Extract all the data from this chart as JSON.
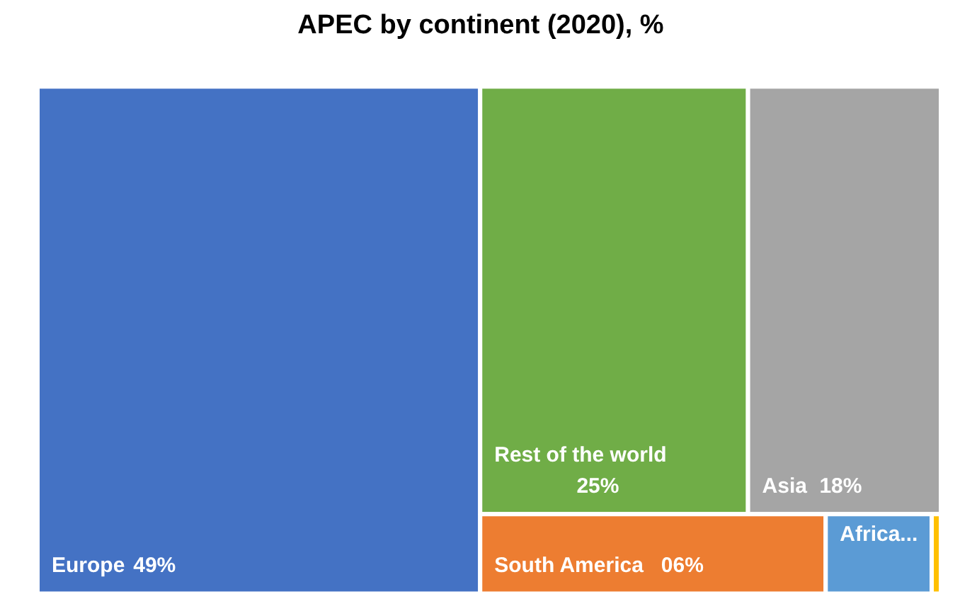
{
  "chart_data": {
    "type": "other",
    "title": "APEC by continent (2020), %",
    "categories": [
      "Europe",
      "Rest of the world",
      "Asia",
      "South America",
      "Africa...",
      null
    ],
    "values": [
      49,
      25,
      18,
      6,
      null,
      null
    ],
    "value_labels": [
      "49%",
      "25%",
      "18%",
      "06%",
      null,
      null
    ],
    "colors": [
      "#4472c4",
      "#70ad47",
      "#a5a5a5",
      "#ed7d31",
      "#5b9bd5",
      "#ffc000"
    ]
  }
}
